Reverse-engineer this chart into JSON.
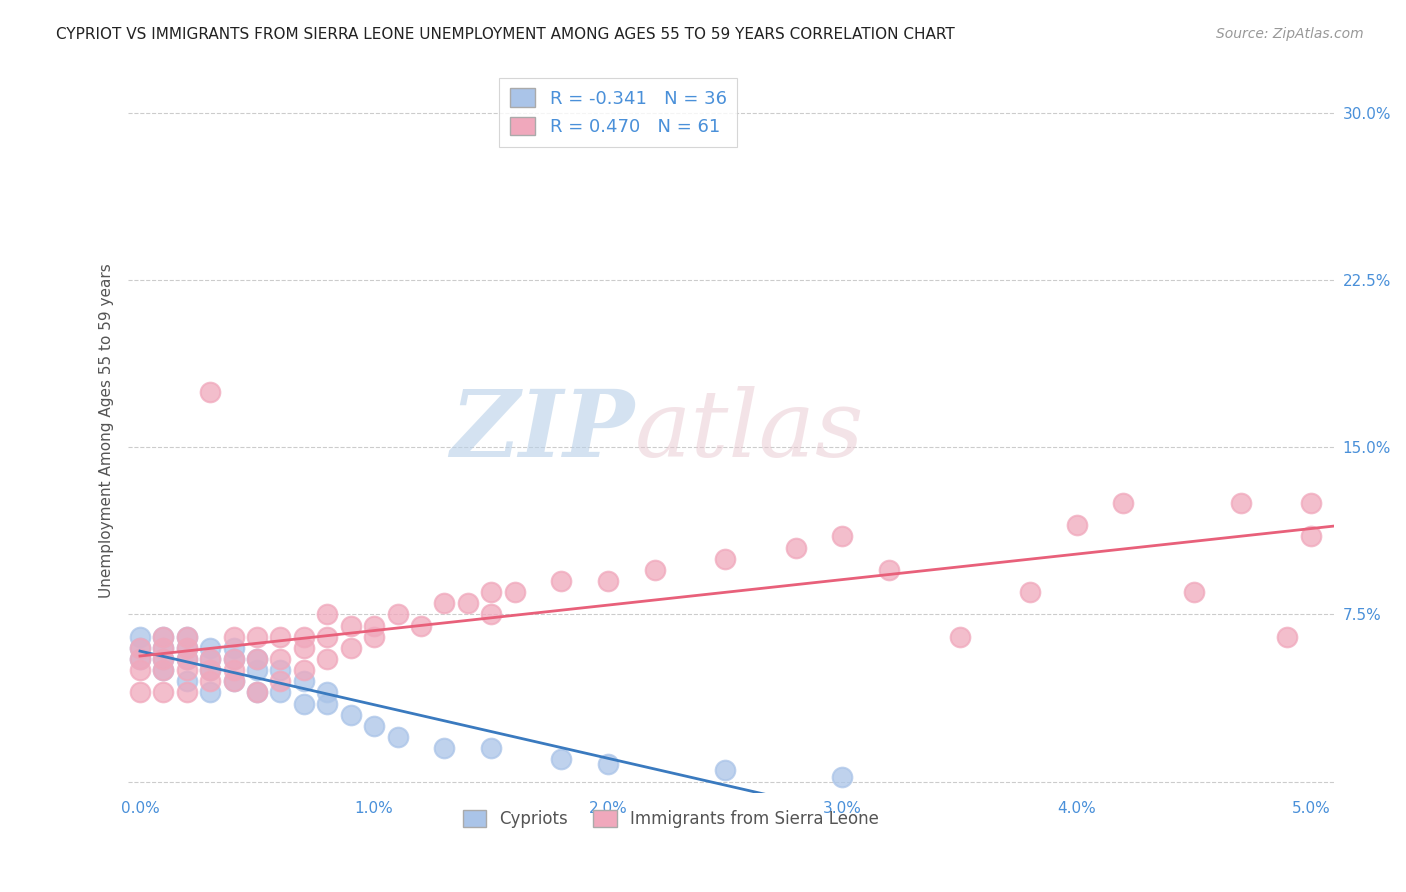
{
  "title": "CYPRIOT VS IMMIGRANTS FROM SIERRA LEONE UNEMPLOYMENT AMONG AGES 55 TO 59 YEARS CORRELATION CHART",
  "source": "Source: ZipAtlas.com",
  "ylabel": "Unemployment Among Ages 55 to 59 years",
  "xlim": [
    -0.0005,
    0.051
  ],
  "ylim": [
    -0.005,
    0.32
  ],
  "xticks": [
    0.0,
    0.01,
    0.02,
    0.03,
    0.04,
    0.05
  ],
  "xtick_labels": [
    "0.0%",
    "1.0%",
    "2.0%",
    "3.0%",
    "4.0%",
    "5.0%"
  ],
  "yticks": [
    0.0,
    0.075,
    0.15,
    0.225,
    0.3
  ],
  "ytick_labels": [
    "",
    "7.5%",
    "15.0%",
    "22.5%",
    "30.0%"
  ],
  "cypriot_color": "#aac4e8",
  "sierraleone_color": "#f0a8bc",
  "cypriot_line_color": "#3a7abf",
  "sierraleone_line_color": "#e8607a",
  "R_cypriot": -0.341,
  "N_cypriot": 36,
  "R_sierraleone": 0.47,
  "N_sierraleone": 61,
  "legend_label_cypriot": "Cypriots",
  "legend_label_sierraleone": "Immigrants from Sierra Leone",
  "watermark_zip": "ZIP",
  "watermark_atlas": "atlas",
  "background_color": "#ffffff",
  "grid_color": "#cccccc",
  "cypriot_scatter_x": [
    0.0,
    0.0,
    0.0,
    0.001,
    0.001,
    0.001,
    0.001,
    0.002,
    0.002,
    0.002,
    0.002,
    0.003,
    0.003,
    0.003,
    0.003,
    0.004,
    0.004,
    0.004,
    0.005,
    0.005,
    0.005,
    0.006,
    0.006,
    0.007,
    0.007,
    0.008,
    0.008,
    0.009,
    0.01,
    0.011,
    0.013,
    0.015,
    0.018,
    0.02,
    0.025,
    0.03
  ],
  "cypriot_scatter_y": [
    0.055,
    0.06,
    0.065,
    0.05,
    0.055,
    0.06,
    0.065,
    0.045,
    0.055,
    0.06,
    0.065,
    0.04,
    0.05,
    0.055,
    0.06,
    0.045,
    0.055,
    0.06,
    0.04,
    0.05,
    0.055,
    0.04,
    0.05,
    0.035,
    0.045,
    0.035,
    0.04,
    0.03,
    0.025,
    0.02,
    0.015,
    0.015,
    0.01,
    0.008,
    0.005,
    0.002
  ],
  "sierraleone_scatter_x": [
    0.0,
    0.0,
    0.0,
    0.0,
    0.001,
    0.001,
    0.001,
    0.001,
    0.001,
    0.002,
    0.002,
    0.002,
    0.002,
    0.002,
    0.003,
    0.003,
    0.003,
    0.003,
    0.004,
    0.004,
    0.004,
    0.004,
    0.005,
    0.005,
    0.005,
    0.006,
    0.006,
    0.006,
    0.007,
    0.007,
    0.007,
    0.008,
    0.008,
    0.008,
    0.009,
    0.009,
    0.01,
    0.01,
    0.011,
    0.012,
    0.013,
    0.014,
    0.015,
    0.015,
    0.016,
    0.018,
    0.02,
    0.022,
    0.025,
    0.028,
    0.03,
    0.032,
    0.035,
    0.038,
    0.04,
    0.042,
    0.045,
    0.047,
    0.049,
    0.05,
    0.05
  ],
  "sierraleone_scatter_y": [
    0.04,
    0.05,
    0.055,
    0.06,
    0.04,
    0.05,
    0.055,
    0.06,
    0.065,
    0.04,
    0.05,
    0.055,
    0.06,
    0.065,
    0.045,
    0.05,
    0.055,
    0.175,
    0.045,
    0.05,
    0.055,
    0.065,
    0.04,
    0.055,
    0.065,
    0.045,
    0.055,
    0.065,
    0.05,
    0.06,
    0.065,
    0.055,
    0.065,
    0.075,
    0.06,
    0.07,
    0.065,
    0.07,
    0.075,
    0.07,
    0.08,
    0.08,
    0.075,
    0.085,
    0.085,
    0.09,
    0.09,
    0.095,
    0.1,
    0.105,
    0.11,
    0.095,
    0.065,
    0.085,
    0.115,
    0.125,
    0.085,
    0.125,
    0.065,
    0.125,
    0.11
  ]
}
